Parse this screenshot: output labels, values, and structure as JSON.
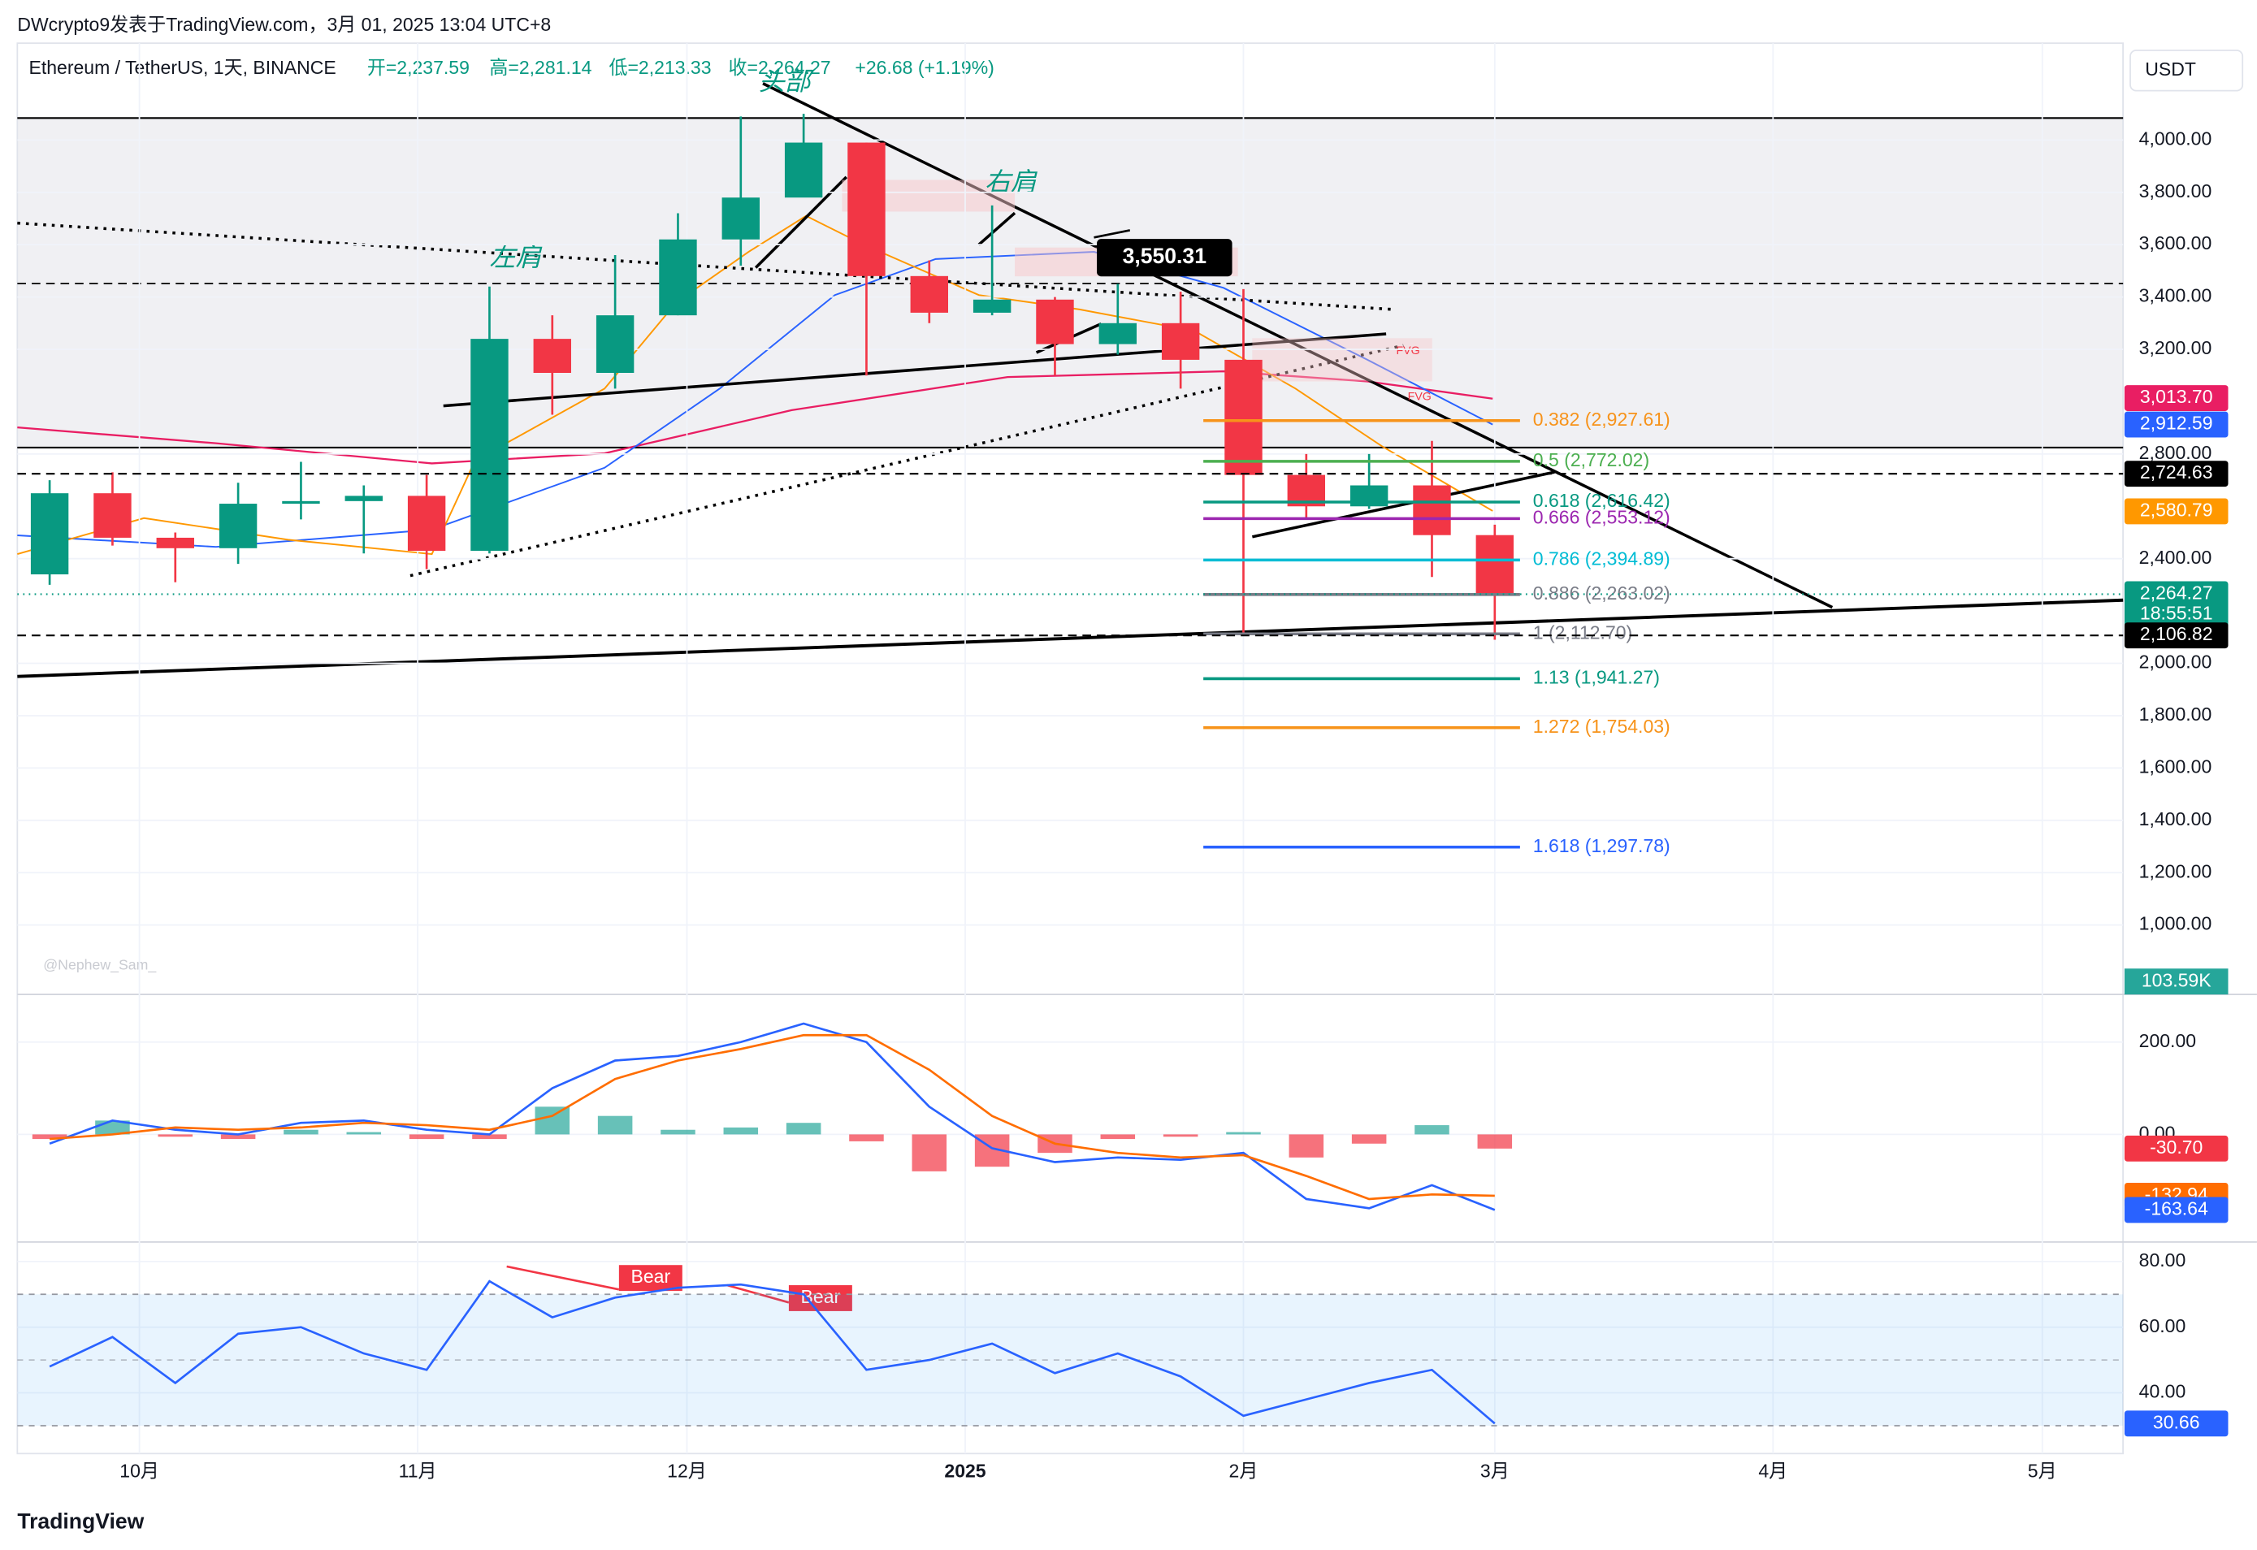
{
  "header": {
    "publisher": "DWcrypto9发表于TradingView.com，3月 01, 2025 13:04 UTC+8",
    "symbol": "Ethereum / TetherUS, 1天, BINANCE",
    "open": "开=2,237.59",
    "high": "高=2,281.14",
    "low": "低=2,213.33",
    "close": "收=2,264.27",
    "change": "+26.68 (+1.19%)",
    "currency": "USDT",
    "brand": "TradingView"
  },
  "chart_data": [
    {
      "type": "candlestick",
      "x": [
        -10,
        -3,
        4,
        11,
        18,
        25,
        32,
        39,
        46,
        53,
        60,
        67,
        74,
        81,
        88,
        95,
        102,
        109,
        116,
        123,
        130,
        137,
        144,
        151
      ],
      "open": [
        2340,
        2650,
        2480,
        2440,
        2610,
        2620,
        2640,
        2430,
        3240,
        3110,
        3330,
        3620,
        3780,
        3990,
        3480,
        3340,
        3390,
        3220,
        3300,
        3160,
        2720,
        2600,
        2680,
        2490
      ],
      "high": [
        2700,
        2730,
        2500,
        2690,
        2770,
        2680,
        2720,
        3440,
        3330,
        3560,
        3720,
        4090,
        4100,
        3990,
        3540,
        3750,
        3400,
        3450,
        3420,
        3430,
        2800,
        2800,
        2850,
        2530
      ],
      "low": [
        2300,
        2450,
        2310,
        2380,
        2550,
        2420,
        2360,
        2420,
        2950,
        3050,
        3330,
        3520,
        3800,
        3100,
        3300,
        3330,
        3100,
        3180,
        3050,
        2110,
        2550,
        2590,
        2330,
        2090
      ],
      "close": [
        2650,
        2480,
        2440,
        2610,
        2620,
        2640,
        2430,
        3240,
        3110,
        3330,
        3620,
        3780,
        3990,
        3480,
        3340,
        3390,
        3220,
        3300,
        3160,
        2720,
        2600,
        2680,
        2490,
        2264.27
      ],
      "up_color": "#089981",
      "down_color": "#f23645",
      "xlim": [
        -13.6,
        221
      ],
      "xticks": [
        {
          "value": 0,
          "label": "10月"
        },
        {
          "value": 31,
          "label": "11月"
        },
        {
          "value": 61,
          "label": "12月"
        },
        {
          "value": 92,
          "label": "2025"
        },
        {
          "value": 123,
          "label": "2月"
        },
        {
          "value": 151,
          "label": "3月"
        },
        {
          "value": 182,
          "label": "4月"
        },
        {
          "value": 212,
          "label": "5月"
        }
      ],
      "ylim": [
        740,
        4370
      ],
      "yticks": [
        {
          "value": 4000,
          "label": "4,000.00"
        },
        {
          "value": 3800,
          "label": "3,800.00"
        },
        {
          "value": 3600,
          "label": "3,600.00"
        },
        {
          "value": 3400,
          "label": "3,400.00"
        },
        {
          "value": 3200,
          "label": "3,200.00"
        },
        {
          "value": 2800,
          "label": "2,800.00"
        },
        {
          "value": 2400,
          "label": "2,400.00"
        },
        {
          "value": 2000,
          "label": "2,000.00"
        },
        {
          "value": 1800,
          "label": "1,800.00"
        },
        {
          "value": 1600,
          "label": "1,600.00"
        },
        {
          "value": 1400,
          "label": "1,400.00"
        },
        {
          "value": 1200,
          "label": "1,200.00"
        },
        {
          "value": 1000,
          "label": "1,000.00"
        }
      ],
      "fib_levels": [
        {
          "value": 2927.61,
          "label": "0.382 (2,927.61)",
          "color": "#f7931a"
        },
        {
          "value": 2772.02,
          "label": "0.5 (2,772.02)",
          "color": "#4caf50"
        },
        {
          "value": 2616.42,
          "label": "0.618 (2,616.42)",
          "color": "#089981"
        },
        {
          "value": 2553.12,
          "label": "0.666 (2,553.12)",
          "color": "#9c27b0"
        },
        {
          "value": 2394.89,
          "label": "0.786 (2,394.89)",
          "color": "#00bcd4"
        },
        {
          "value": 2263.02,
          "label": "0.886 (2,263.02)",
          "color": "#787b86"
        },
        {
          "value": 2112.7,
          "label": "1 (2,112.70)",
          "color": "#787b86"
        },
        {
          "value": 1941.27,
          "label": "1.13 (1,941.27)",
          "color": "#089981"
        },
        {
          "value": 1754.03,
          "label": "1.272 (1,754.03)",
          "color": "#f7931a"
        },
        {
          "value": 1297.78,
          "label": "1.618 (1,297.78)",
          "color": "#2962ff"
        }
      ],
      "price_tags": [
        {
          "value": 3013.7,
          "label": "3,013.70",
          "color": "#e91e63"
        },
        {
          "value": 2912.59,
          "label": "2,912.59",
          "color": "#2962ff"
        },
        {
          "value": 2724.63,
          "label": "2,724.63",
          "color": "#000000",
          "line": "dashed"
        },
        {
          "value": 2580.79,
          "label": "2,580.79",
          "color": "#ff9800"
        },
        {
          "value": 2264.27,
          "label": "2,264.27",
          "sub": "18:55:51",
          "color": "#089981",
          "line": "dotted"
        },
        {
          "value": 2106.82,
          "label": "2,106.82",
          "color": "#000000",
          "line": "dashed"
        }
      ],
      "callout": {
        "value": 3550.31,
        "label": "3,550.31"
      },
      "annotations": {
        "head": "头部",
        "left_shoulder": "左肩",
        "right_shoulder": "右肩",
        "fvg": "FVG",
        "watermark": "@Nephew_Sam_"
      },
      "volume_label": "103.59K"
    },
    {
      "type": "line",
      "x": [
        -10,
        -3,
        4,
        11,
        18,
        25,
        32,
        39,
        46,
        53,
        60,
        67,
        74,
        81,
        88,
        95,
        102,
        109,
        116,
        123,
        130,
        137,
        144,
        151
      ],
      "series": [
        {
          "color": "#2962ff",
          "values": [
            -20,
            30,
            10,
            0,
            25,
            30,
            10,
            0,
            100,
            160,
            170,
            200,
            240,
            200,
            60,
            -30,
            -60,
            -50,
            -55,
            -40,
            -140,
            -160,
            -110,
            -163.64
          ]
        },
        {
          "color": "#ff6d00",
          "values": [
            -10,
            0,
            15,
            10,
            15,
            25,
            20,
            10,
            40,
            120,
            160,
            185,
            215,
            215,
            140,
            40,
            -20,
            -40,
            -50,
            -45,
            -90,
            -140,
            -130,
            -132.94
          ]
        }
      ],
      "histogram": {
        "up_color": "#26a69a",
        "down_color": "#f23645",
        "values": [
          -10,
          30,
          -5,
          -10,
          10,
          5,
          -10,
          -10,
          60,
          40,
          10,
          15,
          25,
          -15,
          -80,
          -70,
          -40,
          -10,
          -5,
          5,
          -50,
          -20,
          20,
          -30.7
        ]
      },
      "ylim": [
        -230,
        300
      ],
      "yticks": [
        {
          "value": 200,
          "label": "200.00"
        },
        {
          "value": 0,
          "label": "0.00"
        }
      ],
      "tags": [
        {
          "value": -30.7,
          "label": "-30.70",
          "color": "#f23645"
        },
        {
          "value": -132.94,
          "label": "-132.94",
          "color": "#ff6d00"
        },
        {
          "value": -163.64,
          "label": "-163.64",
          "color": "#2962ff"
        }
      ]
    },
    {
      "type": "line",
      "x": [
        -10,
        -3,
        4,
        11,
        18,
        25,
        32,
        39,
        46,
        53,
        60,
        67,
        74,
        81,
        88,
        95,
        102,
        109,
        116,
        123,
        130,
        137,
        144,
        151
      ],
      "series": [
        {
          "color": "#2962ff",
          "values": [
            48,
            57,
            43,
            58,
            60,
            52,
            47,
            74,
            63,
            69,
            72,
            73,
            70,
            47,
            50,
            55,
            46,
            52,
            45,
            33,
            38,
            43,
            47,
            30.66
          ]
        }
      ],
      "band": [
        30,
        70
      ],
      "midline": 50,
      "ylim": [
        21.5,
        85.5
      ],
      "yticks": [
        {
          "value": 80,
          "label": "80.00"
        },
        {
          "value": 60,
          "label": "60.00"
        },
        {
          "value": 40,
          "label": "40.00"
        }
      ],
      "tags": [
        {
          "value": 30.66,
          "label": "30.66",
          "color": "#2962ff"
        }
      ],
      "divergence_label": "Bear"
    }
  ]
}
